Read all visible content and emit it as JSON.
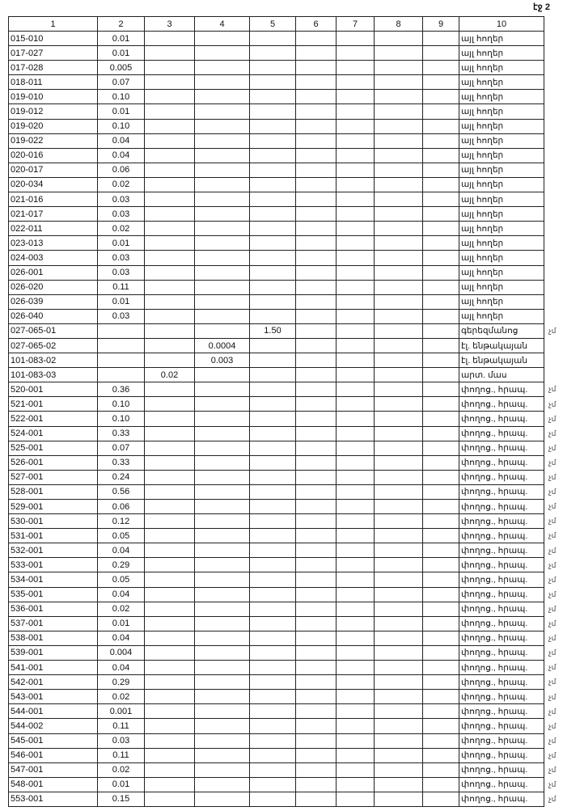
{
  "page_label": "էջ 2",
  "headers": [
    "1",
    "2",
    "3",
    "4",
    "5",
    "6",
    "7",
    "8",
    "9",
    "10"
  ],
  "side_mark": "չմ",
  "rows": [
    {
      "id": "015-010",
      "c2": "0.01",
      "c10": "այլ հողեր"
    },
    {
      "id": "017-027",
      "c2": "0.01",
      "c10": "այլ հողեր"
    },
    {
      "id": "017-028",
      "c2": "0.005",
      "c10": "այլ հողեր"
    },
    {
      "id": "018-011",
      "c2": "0.07",
      "c10": "այլ հողեր"
    },
    {
      "id": "019-010",
      "c2": "0.10",
      "c10": "այլ հողեր"
    },
    {
      "id": "019-012",
      "c2": "0.01",
      "c10": "այլ հողեր"
    },
    {
      "id": "019-020",
      "c2": "0.10",
      "c10": "այլ հողեր"
    },
    {
      "id": "019-022",
      "c2": "0.04",
      "c10": "այլ հողեր"
    },
    {
      "id": "020-016",
      "c2": "0.04",
      "c10": "այլ հողեր"
    },
    {
      "id": "020-017",
      "c2": "0.06",
      "c10": "այլ հողեր"
    },
    {
      "id": "020-034",
      "c2": "0.02",
      "c10": "այլ հողեր"
    },
    {
      "id": "021-016",
      "c2": "0.03",
      "c10": "այլ հողեր"
    },
    {
      "id": "021-017",
      "c2": "0.03",
      "c10": "այլ հողեր"
    },
    {
      "id": "022-011",
      "c2": "0.02",
      "c10": "այլ հողեր"
    },
    {
      "id": "023-013",
      "c2": "0.01",
      "c10": "այլ հողեր"
    },
    {
      "id": "024-003",
      "c2": "0.03",
      "c10": "այլ հողեր"
    },
    {
      "id": "026-001",
      "c2": "0.03",
      "c10": "այլ հողեր"
    },
    {
      "id": "026-020",
      "c2": "0.11",
      "c10": "այլ հողեր"
    },
    {
      "id": "026-039",
      "c2": "0.01",
      "c10": "այլ հողեր"
    },
    {
      "id": "026-040",
      "c2": "0.03",
      "c10": "այլ հողեր"
    },
    {
      "id": "027-065-01",
      "c5": "1.50",
      "c10": "գերեզմանոց",
      "mark": true
    },
    {
      "id": "027-065-02",
      "c4": "0.0004",
      "c10": "էլ. ենթակայան"
    },
    {
      "id": "101-083-02",
      "c4": "0.003",
      "c10": "էլ. ենթակայան"
    },
    {
      "id": "101-083-03",
      "c3": "0.02",
      "c10": "արտ. մաս"
    },
    {
      "id": "520-001",
      "c2": "0.36",
      "c10": "փողոց., հրապ.",
      "mark": true
    },
    {
      "id": "521-001",
      "c2": "0.10",
      "c10": "փողոց., հրապ.",
      "mark": true
    },
    {
      "id": "522-001",
      "c2": "0.10",
      "c10": "փողոց., հրապ.",
      "mark": true
    },
    {
      "id": "524-001",
      "c2": "0.33",
      "c10": "փողոց., հրապ.",
      "mark": true
    },
    {
      "id": "525-001",
      "c2": "0.07",
      "c10": "փողոց., հրապ.",
      "mark": true
    },
    {
      "id": "526-001",
      "c2": "0.33",
      "c10": "փողոց., հրապ.",
      "mark": true
    },
    {
      "id": "527-001",
      "c2": "0.24",
      "c10": "փողոց., հրապ.",
      "mark": true
    },
    {
      "id": "528-001",
      "c2": "0.56",
      "c10": "փողոց., հրապ.",
      "mark": true
    },
    {
      "id": "529-001",
      "c2": "0.06",
      "c10": "փողոց., հրապ.",
      "mark": true
    },
    {
      "id": "530-001",
      "c2": "0.12",
      "c10": "փողոց., հրապ.",
      "mark": true
    },
    {
      "id": "531-001",
      "c2": "0.05",
      "c10": "փողոց., հրապ.",
      "mark": true
    },
    {
      "id": "532-001",
      "c2": "0.04",
      "c10": "փողոց., հրապ.",
      "mark": true
    },
    {
      "id": "533-001",
      "c2": "0.29",
      "c10": "փողոց., հրապ.",
      "mark": true
    },
    {
      "id": "534-001",
      "c2": "0.05",
      "c10": "փողոց., հրապ.",
      "mark": true
    },
    {
      "id": "535-001",
      "c2": "0.04",
      "c10": "փողոց., հրապ.",
      "mark": true
    },
    {
      "id": "536-001",
      "c2": "0.02",
      "c10": "փողոց., հրապ.",
      "mark": true
    },
    {
      "id": "537-001",
      "c2": "0.01",
      "c10": "փողոց., հրապ.",
      "mark": true
    },
    {
      "id": "538-001",
      "c2": "0.04",
      "c10": "փողոց., հրապ.",
      "mark": true
    },
    {
      "id": "539-001",
      "c2": "0.004",
      "c10": "փողոց., հրապ.",
      "mark": true
    },
    {
      "id": "541-001",
      "c2": "0.04",
      "c10": "փողոց., հրապ.",
      "mark": true
    },
    {
      "id": "542-001",
      "c2": "0.29",
      "c10": "փողոց., հրապ.",
      "mark": true
    },
    {
      "id": "543-001",
      "c2": "0.02",
      "c10": "փողոց., հրապ.",
      "mark": true
    },
    {
      "id": "544-001",
      "c2": "0.001",
      "c10": "փողոց., հրապ.",
      "mark": true
    },
    {
      "id": "544-002",
      "c2": "0.11",
      "c10": "փողոց., հրապ.",
      "mark": true
    },
    {
      "id": "545-001",
      "c2": "0.03",
      "c10": "փողոց., հրապ.",
      "mark": true
    },
    {
      "id": "546-001",
      "c2": "0.11",
      "c10": "փողոց., հրապ.",
      "mark": true
    },
    {
      "id": "547-001",
      "c2": "0.02",
      "c10": "փողոց., հրապ.",
      "mark": true
    },
    {
      "id": "548-001",
      "c2": "0.01",
      "c10": "փողոց., հրապ.",
      "mark": true
    },
    {
      "id": "553-001",
      "c2": "0.15",
      "c10": "փողոց., հրապ.",
      "mark": true
    }
  ]
}
